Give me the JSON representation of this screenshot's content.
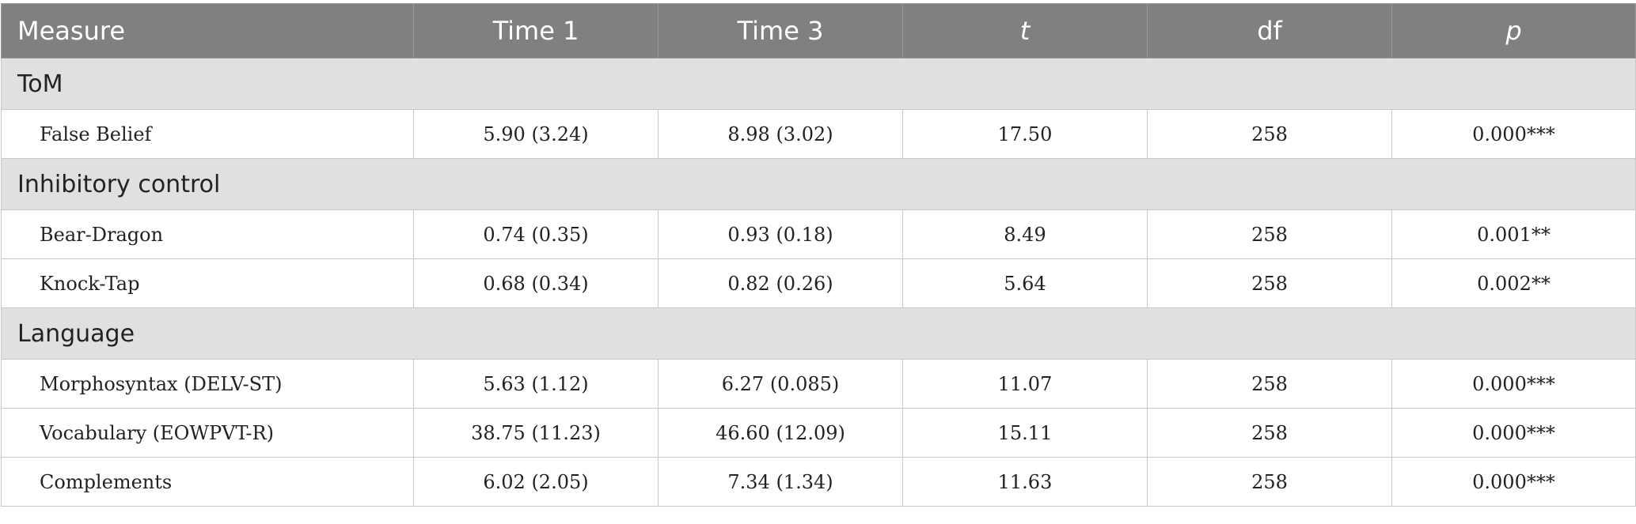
{
  "header": {
    "measure": "Measure",
    "time1": "Time 1",
    "time3": "Time 3",
    "t": "t",
    "df": "df",
    "p": "p"
  },
  "sections": [
    {
      "title": "ToM",
      "rows": [
        {
          "measure": "False Belief",
          "time1": "5.90 (3.24)",
          "time3": "8.98 (3.02)",
          "t": "17.50",
          "df": "258",
          "p": "0.000***"
        }
      ]
    },
    {
      "title": "Inhibitory control",
      "rows": [
        {
          "measure": "Bear-Dragon",
          "time1": "0.74 (0.35)",
          "time3": "0.93 (0.18)",
          "t": "8.49",
          "df": "258",
          "p": "0.001**"
        },
        {
          "measure": "Knock-Tap",
          "time1": "0.68 (0.34)",
          "time3": "0.82 (0.26)",
          "t": "5.64",
          "df": "258",
          "p": "0.002**"
        }
      ]
    },
    {
      "title": "Language",
      "rows": [
        {
          "measure": "Morphosyntax (DELV-ST)",
          "time1": "5.63 (1.12)",
          "time3": "6.27 (0.085)",
          "t": "11.07",
          "df": "258",
          "p": "0.000***"
        },
        {
          "measure": "Vocabulary (EOWPVT-R)",
          "time1": "38.75 (11.23)",
          "time3": "46.60 (12.09)",
          "t": "15.11",
          "df": "258",
          "p": "0.000***"
        },
        {
          "measure": "Complements",
          "time1": "6.02 (2.05)",
          "time3": "7.34 (1.34)",
          "t": "11.63",
          "df": "258",
          "p": "0.000***"
        }
      ]
    }
  ]
}
